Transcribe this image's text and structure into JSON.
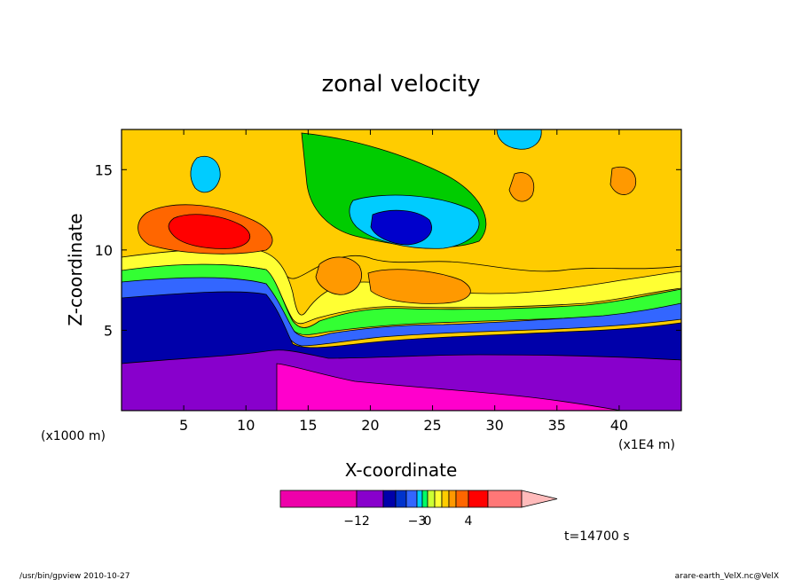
{
  "chart_data": {
    "type": "heatmap",
    "title": "zonal velocity",
    "xlabel": "X-coordinate",
    "ylabel": "Z-coordinate",
    "x_unit_left": "(x1000 m)",
    "x_unit_right": "(x1E4 m)",
    "xlim": [
      0,
      45
    ],
    "ylim": [
      0,
      17.5
    ],
    "x_ticks": [
      5,
      10,
      15,
      20,
      25,
      30,
      35,
      40
    ],
    "y_ticks": [
      5,
      10,
      15
    ],
    "grid": false,
    "colorbar": {
      "tick_labels": [
        {
          "value": -12,
          "label": "−12"
        },
        {
          "value": -3,
          "label": "−3"
        },
        {
          "value": 0,
          "label": "0"
        },
        {
          "value": 4,
          "label": "4"
        }
      ]
    },
    "time_label": "t=14700 s",
    "footer_left": "/usr/bin/gpview   2010-10-27",
    "footer_right": "arare-earth_VelX.nc@VelX"
  }
}
